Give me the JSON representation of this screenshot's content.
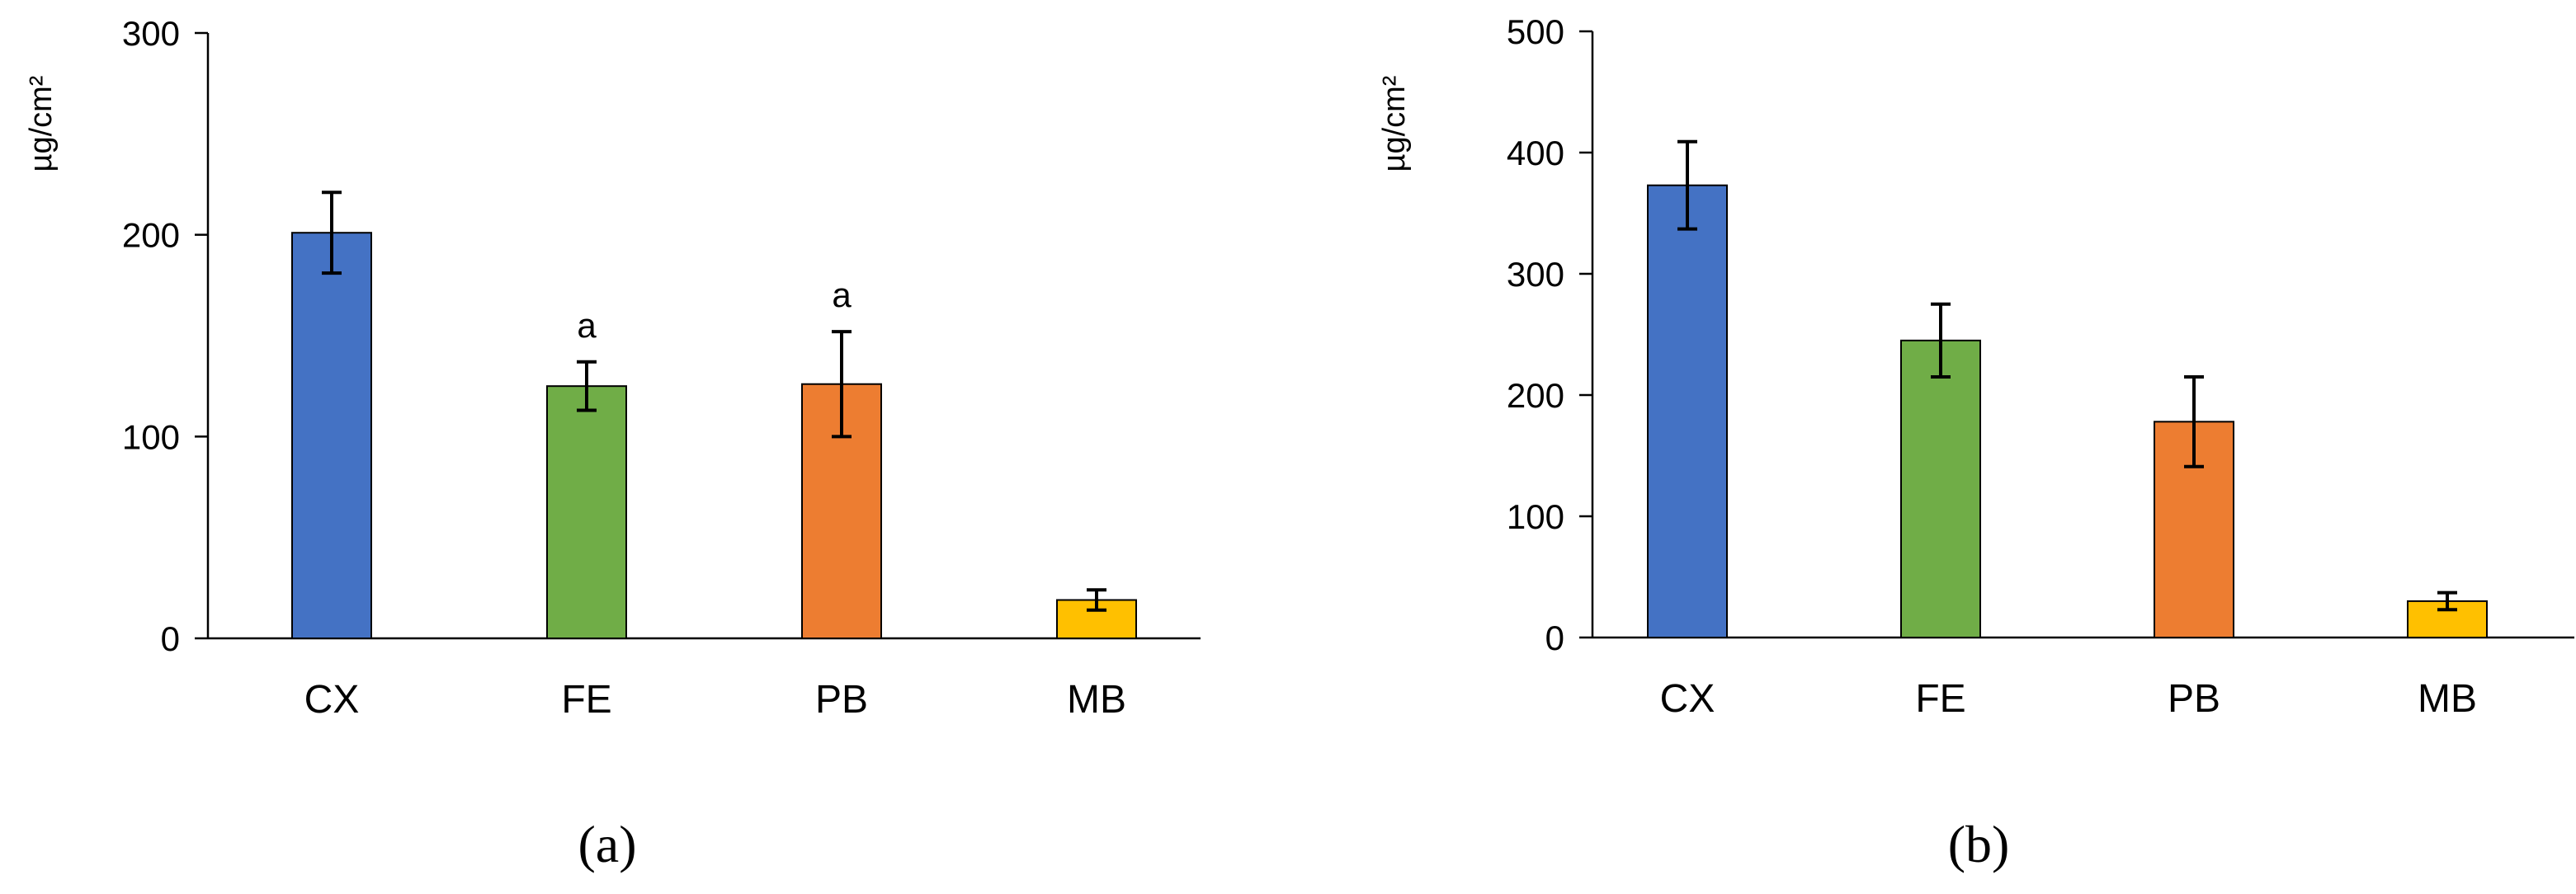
{
  "figure": {
    "panels": [
      "(a)",
      "(b)"
    ]
  },
  "chart_data": [
    {
      "type": "bar",
      "panel": "(a)",
      "categories": [
        "CX",
        "FE",
        "PB",
        "MB"
      ],
      "values": [
        201,
        125,
        126,
        19
      ],
      "errors": [
        20,
        12,
        26,
        5
      ],
      "annotations": [
        "",
        "a",
        "a",
        ""
      ],
      "colors": [
        "#4472c4",
        "#70ad47",
        "#ed7d31",
        "#ffc000"
      ],
      "ylabel": "µg/cm²",
      "ylim": [
        0,
        300
      ],
      "yticks": [
        0,
        100,
        200,
        300
      ],
      "grid": false
    },
    {
      "type": "bar",
      "panel": "(b)",
      "categories": [
        "CX",
        "FE",
        "PB",
        "MB"
      ],
      "values": [
        373,
        245,
        178,
        30
      ],
      "errors": [
        36,
        30,
        37,
        7
      ],
      "annotations": [
        "",
        "",
        "",
        ""
      ],
      "colors": [
        "#4472c4",
        "#70ad47",
        "#ed7d31",
        "#ffc000"
      ],
      "ylabel": "µg/cm²",
      "ylim": [
        0,
        500
      ],
      "yticks": [
        0,
        100,
        200,
        300,
        400,
        500
      ],
      "grid": false
    }
  ]
}
